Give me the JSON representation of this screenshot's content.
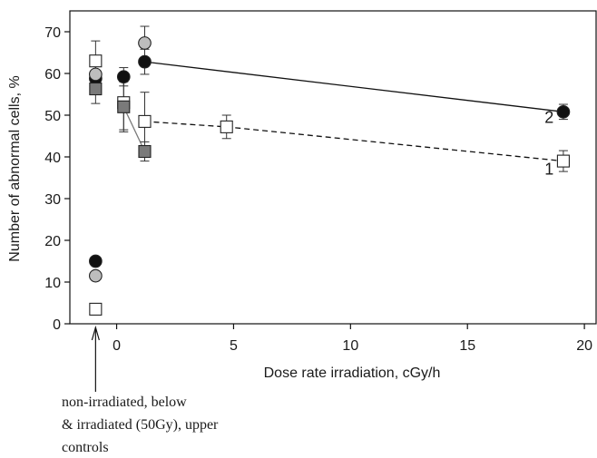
{
  "chart_data": {
    "type": "scatter",
    "xlabel": "Dose rate irradiation, cGy/h",
    "ylabel": "Number of abnormal cells, %",
    "xlim": [
      -2,
      20.5
    ],
    "ylim": [
      0,
      75
    ],
    "x_ticks": [
      0,
      5,
      10,
      15,
      20
    ],
    "y_ticks": [
      0,
      10,
      20,
      30,
      40,
      50,
      60,
      70
    ],
    "grid": false,
    "control_x": -0.9,
    "series": [
      {
        "name": "1",
        "marker": "square-open",
        "line": "dashed",
        "color": "#ffffff",
        "points": [
          {
            "x": -0.9,
            "y": 63,
            "err": 4.8,
            "connect": false
          },
          {
            "x": -0.9,
            "y": 3.5,
            "err": 0,
            "connect": false
          },
          {
            "x": 0.3,
            "y": 53,
            "err": 6.5,
            "connect": false
          },
          {
            "x": 1.2,
            "y": 48.5,
            "err": 7,
            "connect": true
          },
          {
            "x": 4.7,
            "y": 47.2,
            "err": 2.8,
            "connect": true
          },
          {
            "x": 19.1,
            "y": 39,
            "err": 2.5,
            "connect": true
          }
        ]
      },
      {
        "name": "2",
        "marker": "circle-filled",
        "line": "solid",
        "color": "#111111",
        "points": [
          {
            "x": -0.9,
            "y": 58.8,
            "err": 3.5,
            "connect": false
          },
          {
            "x": -0.9,
            "y": 15,
            "err": 0,
            "connect": false
          },
          {
            "x": 0.3,
            "y": 59.2,
            "err": 2.2,
            "connect": false
          },
          {
            "x": 1.2,
            "y": 62.8,
            "err": 3,
            "connect": true
          },
          {
            "x": 19.1,
            "y": 50.8,
            "err": 1.8,
            "connect": true
          }
        ]
      },
      {
        "name": "",
        "marker": "circle-gray",
        "line": "solid",
        "color": "#bdbdbd",
        "points": [
          {
            "x": -0.9,
            "y": 59.8,
            "err": 4,
            "connect": false
          },
          {
            "x": -0.9,
            "y": 11.5,
            "err": 0,
            "connect": false
          },
          {
            "x": 1.2,
            "y": 67.3,
            "err": 4,
            "connect": false
          }
        ]
      },
      {
        "name": "",
        "marker": "square-gray",
        "line": "solid",
        "color": "#7a7a7a",
        "points": [
          {
            "x": -0.9,
            "y": 56.3,
            "err": 3.5,
            "connect": false
          },
          {
            "x": 0.3,
            "y": 52,
            "err": 6,
            "connect": true
          },
          {
            "x": 1.2,
            "y": 41.3,
            "err": 2.3,
            "connect": true
          }
        ]
      }
    ],
    "annotations": [
      {
        "text": "1",
        "x": 18.3,
        "y": 35.8
      },
      {
        "text": "2",
        "x": 18.3,
        "y": 48.2
      }
    ],
    "note_lines": [
      "non-irradiated, below",
      "& irradiated (50Gy), upper",
      "controls"
    ]
  }
}
